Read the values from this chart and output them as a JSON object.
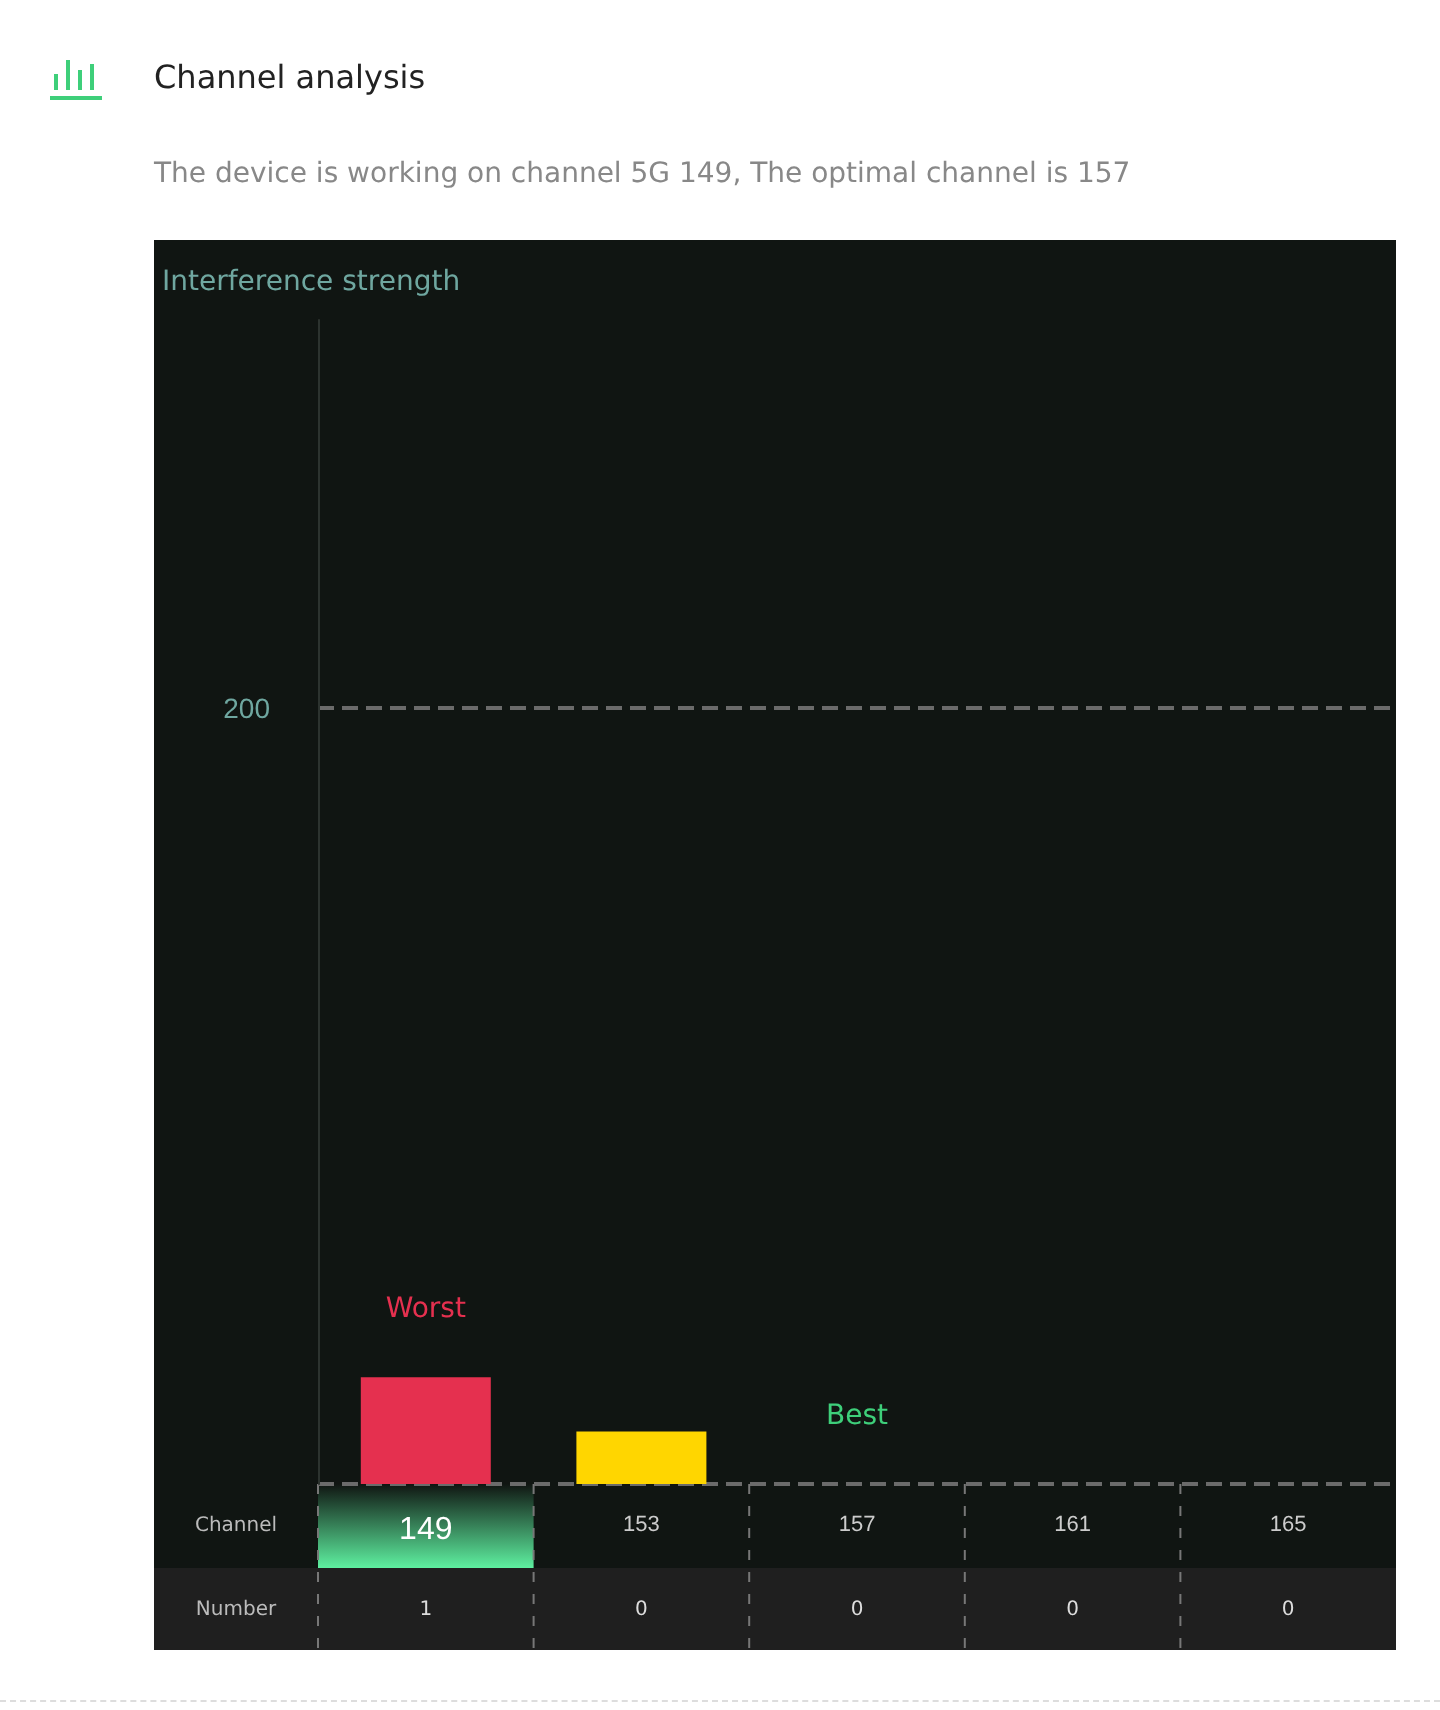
{
  "chart_data": {
    "type": "bar",
    "title": "Channel analysis",
    "subtitle": "The device is working on channel 5G 149, The optimal channel is 157",
    "xlabel": "Channel",
    "categories": [
      "149",
      "153",
      "157",
      "161",
      "165"
    ],
    "values": [
      27.5,
      13.5,
      0,
      0,
      0
    ],
    "colors": [
      "#e5304f",
      "#ffd600",
      "#ffd600",
      "#ffd600",
      "#ffd600"
    ],
    "ylim": [
      0,
      300
    ],
    "yticks": [
      {
        "value": 0,
        "label": null
      },
      200
    ],
    "grid": "y",
    "annotations": [
      "Interference strength",
      "Worst",
      "Best",
      "Number",
      "1",
      "0",
      "0",
      "0",
      "0"
    ]
  }
}
